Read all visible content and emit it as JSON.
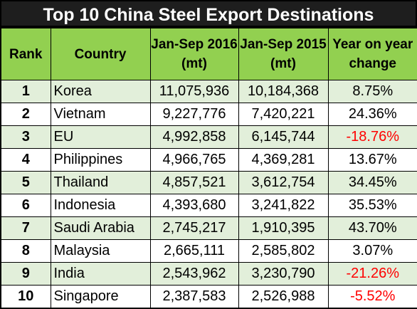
{
  "chart_data": {
    "type": "table",
    "title": "Top 10 China Steel Export Destinations",
    "columns": [
      "Rank",
      "Country",
      "Jan-Sep 2016 (mt)",
      "Jan-Sep 2015 (mt)",
      "Year on year change"
    ],
    "rows": [
      {
        "rank": "1",
        "country": "Korea",
        "y2016": "11,075,936",
        "y2015": "10,184,368",
        "change": "8.75%",
        "negative": false
      },
      {
        "rank": "2",
        "country": "Vietnam",
        "y2016": "9,227,776",
        "y2015": "7,420,221",
        "change": "24.36%",
        "negative": false
      },
      {
        "rank": "3",
        "country": "EU",
        "y2016": "4,992,858",
        "y2015": "6,145,744",
        "change": "-18.76%",
        "negative": true
      },
      {
        "rank": "4",
        "country": "Philippines",
        "y2016": "4,966,765",
        "y2015": "4,369,281",
        "change": "13.67%",
        "negative": false
      },
      {
        "rank": "5",
        "country": "Thailand",
        "y2016": "4,857,521",
        "y2015": "3,612,754",
        "change": "34.45%",
        "negative": false
      },
      {
        "rank": "6",
        "country": "Indonesia",
        "y2016": "4,393,680",
        "y2015": "3,241,822",
        "change": "35.53%",
        "negative": false
      },
      {
        "rank": "7",
        "country": "Saudi Arabia",
        "y2016": "2,745,217",
        "y2015": "1,910,395",
        "change": "43.70%",
        "negative": false
      },
      {
        "rank": "8",
        "country": "Malaysia",
        "y2016": "2,665,111",
        "y2015": "2,585,802",
        "change": "3.07%",
        "negative": false
      },
      {
        "rank": "9",
        "country": "India",
        "y2016": "2,543,962",
        "y2015": "3,230,790",
        "change": "-21.26%",
        "negative": true
      },
      {
        "rank": "10",
        "country": "Singapore",
        "y2016": "2,387,583",
        "y2015": "2,526,988",
        "change": "-5.52%",
        "negative": true
      }
    ]
  },
  "colors": {
    "title_bg": "#1e1e1e",
    "header_bg": "#92d050",
    "row_alt_bg": "#e2efda",
    "negative_text": "#ff0000"
  }
}
